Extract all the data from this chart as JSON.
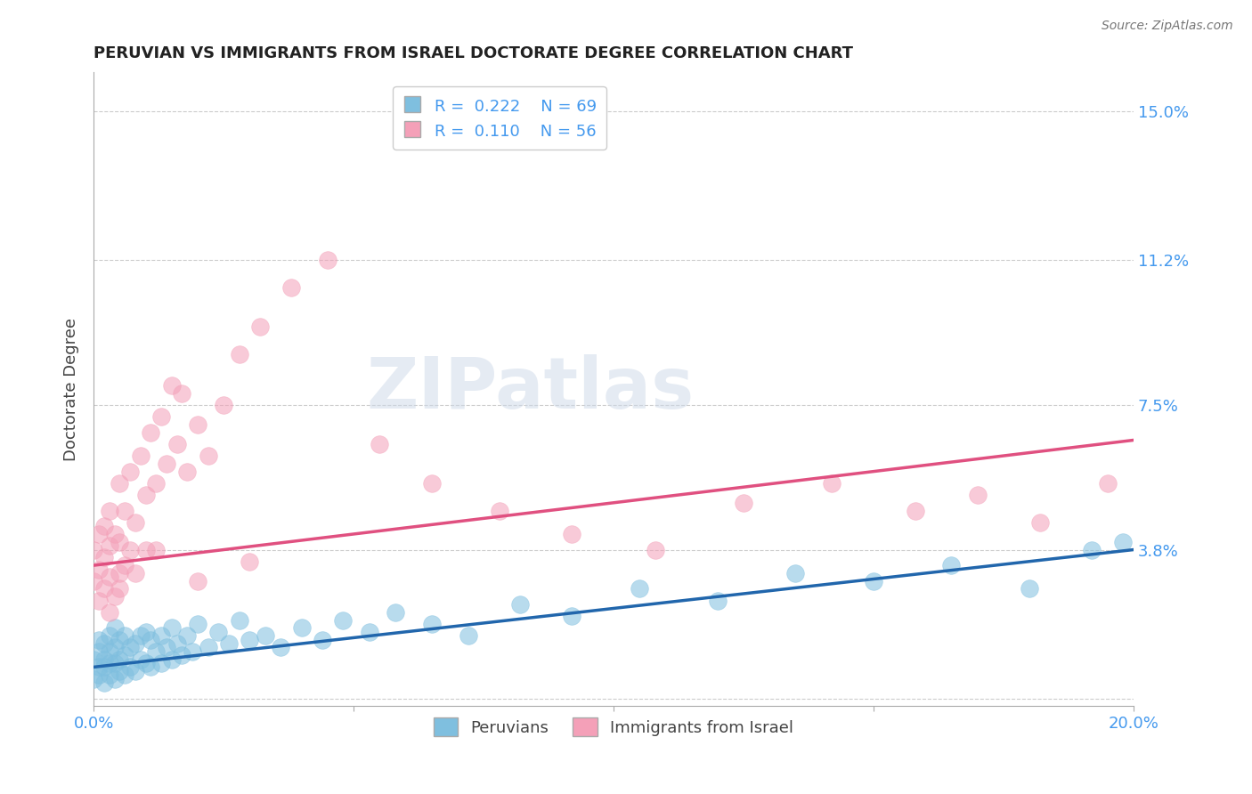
{
  "title": "PERUVIAN VS IMMIGRANTS FROM ISRAEL DOCTORATE DEGREE CORRELATION CHART",
  "source": "Source: ZipAtlas.com",
  "ylabel": "Doctorate Degree",
  "xlim": [
    0.0,
    0.2
  ],
  "ylim": [
    -0.002,
    0.16
  ],
  "yticks": [
    0.0,
    0.038,
    0.075,
    0.112,
    0.15
  ],
  "ytick_labels": [
    "",
    "3.8%",
    "7.5%",
    "11.2%",
    "15.0%"
  ],
  "xticks": [
    0.0,
    0.05,
    0.1,
    0.15,
    0.2
  ],
  "xtick_labels": [
    "0.0%",
    "",
    "",
    "",
    "20.0%"
  ],
  "grid_color": "#cccccc",
  "background_color": "#ffffff",
  "blue_color": "#7fbfdf",
  "pink_color": "#f4a0b8",
  "blue_line_color": "#2166ac",
  "pink_line_color": "#e05080",
  "legend_R_blue": "0.222",
  "legend_N_blue": "69",
  "legend_R_pink": "0.110",
  "legend_N_pink": "56",
  "tick_label_color": "#4499ee",
  "watermark_text": "ZIPatlas",
  "blue_line_x0": 0.0,
  "blue_line_x1": 0.2,
  "blue_line_y0": 0.008,
  "blue_line_y1": 0.038,
  "pink_line_x0": 0.0,
  "pink_line_x1": 0.2,
  "pink_line_y0": 0.034,
  "pink_line_y1": 0.066,
  "blue_scatter_x": [
    0.0,
    0.0,
    0.001,
    0.001,
    0.001,
    0.001,
    0.002,
    0.002,
    0.002,
    0.002,
    0.003,
    0.003,
    0.003,
    0.003,
    0.004,
    0.004,
    0.004,
    0.004,
    0.005,
    0.005,
    0.005,
    0.006,
    0.006,
    0.006,
    0.007,
    0.007,
    0.008,
    0.008,
    0.009,
    0.009,
    0.01,
    0.01,
    0.011,
    0.011,
    0.012,
    0.013,
    0.013,
    0.014,
    0.015,
    0.015,
    0.016,
    0.017,
    0.018,
    0.019,
    0.02,
    0.022,
    0.024,
    0.026,
    0.028,
    0.03,
    0.033,
    0.036,
    0.04,
    0.044,
    0.048,
    0.053,
    0.058,
    0.065,
    0.072,
    0.082,
    0.092,
    0.105,
    0.12,
    0.135,
    0.15,
    0.165,
    0.18,
    0.192,
    0.198
  ],
  "blue_scatter_y": [
    0.005,
    0.01,
    0.006,
    0.008,
    0.012,
    0.015,
    0.004,
    0.008,
    0.01,
    0.014,
    0.006,
    0.009,
    0.012,
    0.016,
    0.005,
    0.009,
    0.013,
    0.018,
    0.007,
    0.01,
    0.015,
    0.006,
    0.011,
    0.016,
    0.008,
    0.013,
    0.007,
    0.014,
    0.01,
    0.016,
    0.009,
    0.017,
    0.008,
    0.015,
    0.012,
    0.009,
    0.016,
    0.013,
    0.01,
    0.018,
    0.014,
    0.011,
    0.016,
    0.012,
    0.019,
    0.013,
    0.017,
    0.014,
    0.02,
    0.015,
    0.016,
    0.013,
    0.018,
    0.015,
    0.02,
    0.017,
    0.022,
    0.019,
    0.016,
    0.024,
    0.021,
    0.028,
    0.025,
    0.032,
    0.03,
    0.034,
    0.028,
    0.038,
    0.04
  ],
  "pink_scatter_x": [
    0.0,
    0.0,
    0.001,
    0.001,
    0.001,
    0.002,
    0.002,
    0.002,
    0.003,
    0.003,
    0.003,
    0.004,
    0.004,
    0.005,
    0.005,
    0.005,
    0.006,
    0.006,
    0.007,
    0.007,
    0.008,
    0.009,
    0.01,
    0.01,
    0.011,
    0.012,
    0.013,
    0.014,
    0.015,
    0.016,
    0.017,
    0.018,
    0.02,
    0.022,
    0.025,
    0.028,
    0.032,
    0.038,
    0.045,
    0.055,
    0.065,
    0.078,
    0.092,
    0.108,
    0.125,
    0.142,
    0.158,
    0.17,
    0.182,
    0.195,
    0.003,
    0.005,
    0.008,
    0.012,
    0.02,
    0.03
  ],
  "pink_scatter_y": [
    0.03,
    0.038,
    0.025,
    0.033,
    0.042,
    0.028,
    0.036,
    0.044,
    0.031,
    0.039,
    0.048,
    0.026,
    0.042,
    0.032,
    0.04,
    0.055,
    0.034,
    0.048,
    0.038,
    0.058,
    0.045,
    0.062,
    0.038,
    0.052,
    0.068,
    0.055,
    0.072,
    0.06,
    0.08,
    0.065,
    0.078,
    0.058,
    0.07,
    0.062,
    0.075,
    0.088,
    0.095,
    0.105,
    0.112,
    0.065,
    0.055,
    0.048,
    0.042,
    0.038,
    0.05,
    0.055,
    0.048,
    0.052,
    0.045,
    0.055,
    0.022,
    0.028,
    0.032,
    0.038,
    0.03,
    0.035
  ]
}
